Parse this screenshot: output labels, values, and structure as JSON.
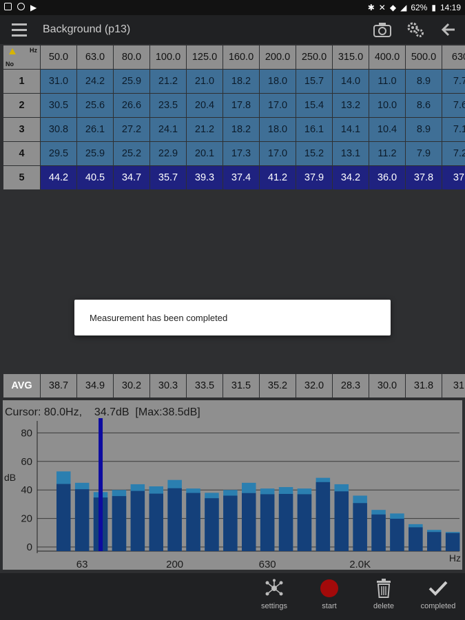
{
  "status_bar": {
    "battery": "62%",
    "time": "14:19"
  },
  "app_bar": {
    "title": "Background (p13)"
  },
  "table": {
    "corner_hz": "Hz",
    "corner_no": "No",
    "frequencies": [
      "50.0",
      "63.0",
      "80.0",
      "100.0",
      "125.0",
      "160.0",
      "200.0",
      "250.0",
      "315.0",
      "400.0",
      "500.0",
      "630"
    ],
    "rows": [
      {
        "no": "1",
        "values": [
          "31.0",
          "24.2",
          "25.9",
          "21.2",
          "21.0",
          "18.2",
          "18.0",
          "15.7",
          "14.0",
          "11.0",
          "8.9",
          "7.7"
        ],
        "highlight": false
      },
      {
        "no": "2",
        "values": [
          "30.5",
          "25.6",
          "26.6",
          "23.5",
          "20.4",
          "17.8",
          "17.0",
          "15.4",
          "13.2",
          "10.0",
          "8.6",
          "7.6"
        ],
        "highlight": false
      },
      {
        "no": "3",
        "values": [
          "30.8",
          "26.1",
          "27.2",
          "24.1",
          "21.2",
          "18.2",
          "18.0",
          "16.1",
          "14.1",
          "10.4",
          "8.9",
          "7.1"
        ],
        "highlight": false
      },
      {
        "no": "4",
        "values": [
          "29.5",
          "25.9",
          "25.2",
          "22.9",
          "20.1",
          "17.3",
          "17.0",
          "15.2",
          "13.1",
          "11.2",
          "7.9",
          "7.2"
        ],
        "highlight": false
      },
      {
        "no": "5",
        "values": [
          "44.2",
          "40.5",
          "34.7",
          "35.7",
          "39.3",
          "37.4",
          "41.2",
          "37.9",
          "34.2",
          "36.0",
          "37.8",
          "37."
        ],
        "highlight": true
      }
    ]
  },
  "dialog": {
    "message": "Measurement has been completed"
  },
  "avg": {
    "label": "AVG",
    "values": [
      "38.7",
      "34.9",
      "30.2",
      "30.3",
      "33.5",
      "31.5",
      "35.2",
      "32.0",
      "28.3",
      "30.0",
      "31.8",
      "31."
    ]
  },
  "chart_data": {
    "type": "bar",
    "cursor_text": "Cursor: 80.0Hz,    34.7dB  [Max:38.5dB]",
    "ylabel": "dB",
    "xlabel": "Hz",
    "ylim": [
      0,
      90
    ],
    "yticks": [
      "0",
      "20",
      "40",
      "60",
      "80"
    ],
    "xtick_labels": [
      {
        "label": "63",
        "index": 1
      },
      {
        "label": "200",
        "index": 6
      },
      {
        "label": "630",
        "index": 11
      },
      {
        "label": "2.0K",
        "index": 16
      }
    ],
    "cursor_index": 2,
    "series": [
      {
        "name": "current",
        "values": [
          44.2,
          40.5,
          34.7,
          35.7,
          39.3,
          37.4,
          41.2,
          37.9,
          34.2,
          36.0,
          37.8,
          37.0,
          37.2,
          37.0,
          45.5,
          39.0,
          30.8,
          22.8,
          19.8,
          13.8,
          10.5,
          9.8
        ]
      },
      {
        "name": "max",
        "values": [
          53.0,
          45.0,
          38.5,
          40.0,
          44.0,
          42.5,
          47.0,
          41.0,
          38.0,
          40.0,
          45.0,
          41.0,
          42.0,
          41.0,
          48.5,
          44.0,
          36.0,
          26.0,
          23.5,
          16.0,
          12.0,
          10.5
        ]
      }
    ],
    "colors": {
      "current": "#14407a",
      "max": "#2b7fb0",
      "cursor": "#0d0ba0"
    }
  },
  "bottom_bar": {
    "settings_label": "settings",
    "start_label": "start",
    "delete_label": "delete",
    "completed_label": "completed"
  }
}
